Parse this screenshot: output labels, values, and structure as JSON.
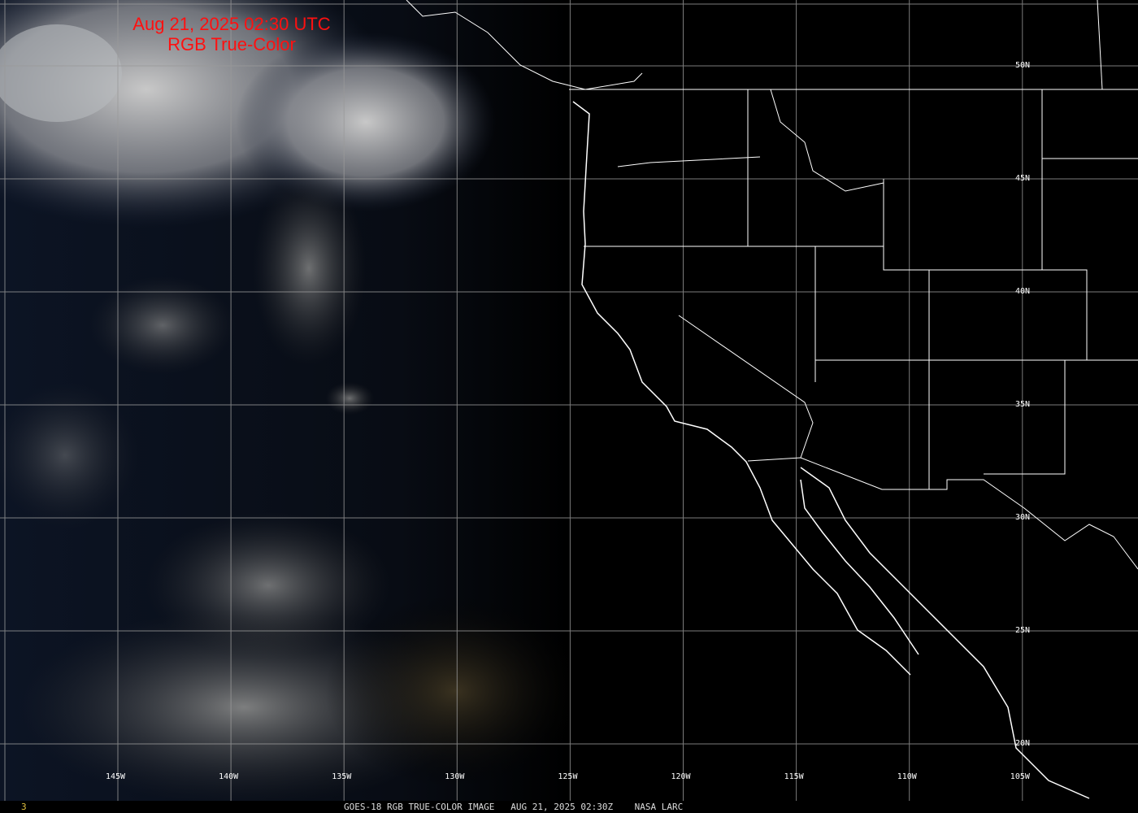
{
  "title": {
    "line1": "Aug 21, 2025 02:30 UTC",
    "line2": "RGB True-Color"
  },
  "footer": {
    "frame": "3",
    "caption": "GOES-18 RGB TRUE-COLOR IMAGE   AUG 21, 2025 02:30Z    NASA LARC"
  },
  "longitude_labels": [
    "145W",
    "140W",
    "135W",
    "130W",
    "125W",
    "120W",
    "115W",
    "110W",
    "105W"
  ],
  "latitude_labels": [
    "50N",
    "45N",
    "40N",
    "35N",
    "30N",
    "25N",
    "20N"
  ],
  "colors": {
    "title": "#ff1010",
    "grid": "#9a9a9a",
    "borders": "#ffffff",
    "frame_number": "#e0c040"
  }
}
